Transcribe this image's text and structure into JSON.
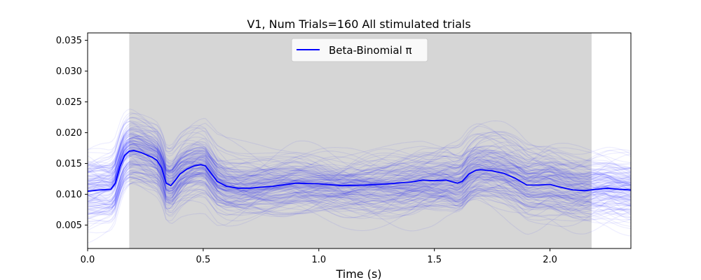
{
  "chart_data": {
    "type": "line",
    "title": "V1, Num Trials=160 All stimulated trials",
    "xlabel": "Time (s)",
    "ylabel": "",
    "xlim": [
      0.0,
      2.35
    ],
    "ylim": [
      0.0012,
      0.0362
    ],
    "xticks": [
      0.0,
      0.5,
      1.0,
      1.5,
      2.0
    ],
    "xtick_labels": [
      "0.0",
      "0.5",
      "1.0",
      "1.5",
      "2.0"
    ],
    "yticks": [
      0.005,
      0.01,
      0.015,
      0.02,
      0.025,
      0.03,
      0.035
    ],
    "ytick_labels": [
      "0.005",
      "0.010",
      "0.015",
      "0.020",
      "0.025",
      "0.030",
      "0.035"
    ],
    "grid": false,
    "legend": {
      "placement": "upper-center",
      "entries": [
        "Beta-Binomial π"
      ]
    },
    "stimulus_interval": {
      "start": 0.18,
      "end": 2.18,
      "color": "#d6d6d6"
    },
    "trial_count": 160,
    "trial_color": "#0000ff",
    "mean_color": "#0000ff",
    "series": [
      {
        "name": "Beta-Binomial π",
        "x": [
          0.0,
          0.05,
          0.1,
          0.12,
          0.14,
          0.16,
          0.18,
          0.2,
          0.23,
          0.26,
          0.28,
          0.3,
          0.32,
          0.34,
          0.36,
          0.38,
          0.4,
          0.43,
          0.46,
          0.49,
          0.51,
          0.53,
          0.56,
          0.6,
          0.65,
          0.7,
          0.8,
          0.9,
          1.0,
          1.1,
          1.2,
          1.3,
          1.4,
          1.45,
          1.5,
          1.55,
          1.6,
          1.62,
          1.65,
          1.68,
          1.7,
          1.75,
          1.8,
          1.85,
          1.9,
          1.95,
          2.0,
          2.05,
          2.1,
          2.15,
          2.2,
          2.25,
          2.3,
          2.35
        ],
        "values": [
          0.0105,
          0.0107,
          0.0108,
          0.0118,
          0.0145,
          0.0163,
          0.017,
          0.0171,
          0.0168,
          0.0163,
          0.016,
          0.0155,
          0.0143,
          0.0118,
          0.0114,
          0.0123,
          0.0133,
          0.0141,
          0.0146,
          0.0148,
          0.0146,
          0.0136,
          0.0121,
          0.0113,
          0.011,
          0.011,
          0.0113,
          0.0118,
          0.0117,
          0.0114,
          0.0115,
          0.0117,
          0.012,
          0.0123,
          0.0122,
          0.0123,
          0.0118,
          0.0121,
          0.0133,
          0.0139,
          0.014,
          0.0138,
          0.0134,
          0.0126,
          0.0115,
          0.0115,
          0.0116,
          0.0111,
          0.0107,
          0.0106,
          0.0108,
          0.011,
          0.0108,
          0.0107
        ]
      }
    ]
  }
}
